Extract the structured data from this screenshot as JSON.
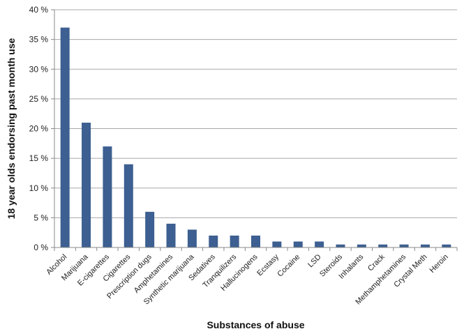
{
  "chart_data": {
    "type": "bar",
    "title": "",
    "xlabel": "Substances of abuse",
    "ylabel": "18 year olds endorsing past month use",
    "ylim": [
      0,
      40
    ],
    "yticks": [
      0,
      5,
      10,
      15,
      20,
      25,
      30,
      35,
      40
    ],
    "ytick_labels": [
      "0 %",
      "5 %",
      "10 %",
      "15 %",
      "20 %",
      "25 %",
      "30 %",
      "35 %",
      "40 %"
    ],
    "grid": true,
    "legend": "none",
    "bar_color": "#3d5f91",
    "categories": [
      "Alcohol",
      "Marijuana",
      "E-cigarettes",
      "Cigarettes",
      "Prescription dugs",
      "Amphetamines",
      "Synthetic marijuana",
      "Sedatives",
      "Tranquilizers",
      "Hallucinogens",
      "Ecstasy",
      "Cocaine",
      "LSD",
      "Steroids",
      "Inhalants",
      "Crack",
      "Methamphetamines",
      "Crystal Meth",
      "Heroin"
    ],
    "values": [
      37,
      21,
      17,
      14,
      6,
      4,
      3,
      2,
      2,
      2,
      1,
      1,
      1,
      0.5,
      0.5,
      0.5,
      0.5,
      0.5,
      0.5
    ]
  }
}
